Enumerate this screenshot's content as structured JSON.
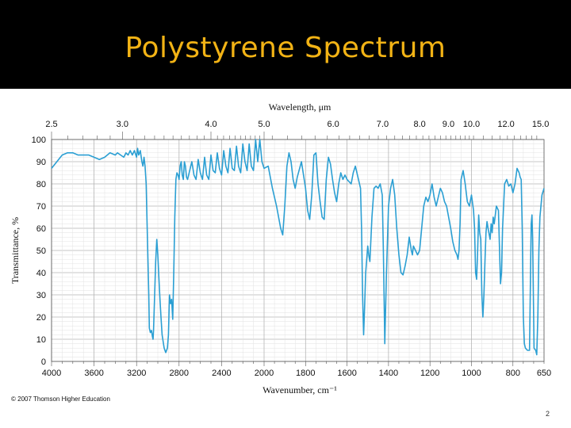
{
  "slide": {
    "title": "Polystyrene Spectrum",
    "copyright": "© 2007 Thomson Higher Education",
    "page_number": "2",
    "title_color": "#f2b315",
    "banner_color": "#000000"
  },
  "chart_data": {
    "type": "line",
    "title": "Polystyrene Spectrum",
    "xlabel": "Wavenumber, cm⁻¹",
    "ylabel": "Transmittance, %",
    "top_axis_label": "Wavelength, μm",
    "xlim": [
      4000,
      650
    ],
    "ylim": [
      0,
      100
    ],
    "x_tick_labels": [
      "4000",
      "3600",
      "3200",
      "2800",
      "2400",
      "2000",
      "1800",
      "1600",
      "1400",
      "1200",
      "1000",
      "800",
      "650"
    ],
    "y_tick_labels": [
      "0",
      "10",
      "20",
      "30",
      "40",
      "50",
      "60",
      "70",
      "80",
      "90",
      "100"
    ],
    "top_tick_labels": [
      "2.5",
      "3.0",
      "4.0",
      "5.0",
      "6.0",
      "7.0",
      "8.0",
      "9.0",
      "10.0",
      "12.0",
      "15.0"
    ],
    "line_color": "#2b9fd3",
    "grid": true,
    "series": [
      {
        "name": "Polystyrene",
        "points": [
          [
            4000,
            87
          ],
          [
            3950,
            90
          ],
          [
            3900,
            93
          ],
          [
            3850,
            94
          ],
          [
            3800,
            94
          ],
          [
            3750,
            93
          ],
          [
            3700,
            93
          ],
          [
            3650,
            93
          ],
          [
            3600,
            92
          ],
          [
            3550,
            91
          ],
          [
            3500,
            92
          ],
          [
            3450,
            94
          ],
          [
            3400,
            93
          ],
          [
            3380,
            94
          ],
          [
            3350,
            93
          ],
          [
            3320,
            92
          ],
          [
            3300,
            94
          ],
          [
            3280,
            93
          ],
          [
            3260,
            95
          ],
          [
            3240,
            93
          ],
          [
            3220,
            95
          ],
          [
            3200,
            92
          ],
          [
            3190,
            96
          ],
          [
            3180,
            93
          ],
          [
            3165,
            95
          ],
          [
            3150,
            90
          ],
          [
            3140,
            88
          ],
          [
            3130,
            92
          ],
          [
            3120,
            88
          ],
          [
            3110,
            80
          ],
          [
            3100,
            60
          ],
          [
            3085,
            30
          ],
          [
            3080,
            15
          ],
          [
            3070,
            13
          ],
          [
            3060,
            14
          ],
          [
            3050,
            11
          ],
          [
            3045,
            10
          ],
          [
            3040,
            14
          ],
          [
            3030,
            30
          ],
          [
            3020,
            45
          ],
          [
            3010,
            55
          ],
          [
            3000,
            48
          ],
          [
            2990,
            38
          ],
          [
            2980,
            28
          ],
          [
            2970,
            20
          ],
          [
            2960,
            12
          ],
          [
            2940,
            6
          ],
          [
            2925,
            4
          ],
          [
            2910,
            6
          ],
          [
            2900,
            12
          ],
          [
            2890,
            30
          ],
          [
            2880,
            26
          ],
          [
            2870,
            28
          ],
          [
            2860,
            19
          ],
          [
            2850,
            40
          ],
          [
            2840,
            65
          ],
          [
            2830,
            82
          ],
          [
            2820,
            85
          ],
          [
            2810,
            84
          ],
          [
            2800,
            82
          ],
          [
            2790,
            88
          ],
          [
            2780,
            90
          ],
          [
            2770,
            84
          ],
          [
            2760,
            82
          ],
          [
            2750,
            90
          ],
          [
            2740,
            88
          ],
          [
            2730,
            83
          ],
          [
            2720,
            82
          ],
          [
            2700,
            86
          ],
          [
            2680,
            90
          ],
          [
            2660,
            84
          ],
          [
            2640,
            82
          ],
          [
            2620,
            91
          ],
          [
            2600,
            85
          ],
          [
            2580,
            82
          ],
          [
            2560,
            92
          ],
          [
            2540,
            84
          ],
          [
            2520,
            82
          ],
          [
            2500,
            93
          ],
          [
            2480,
            86
          ],
          [
            2460,
            85
          ],
          [
            2440,
            94
          ],
          [
            2420,
            87
          ],
          [
            2400,
            84
          ],
          [
            2380,
            95
          ],
          [
            2360,
            88
          ],
          [
            2340,
            85
          ],
          [
            2320,
            96
          ],
          [
            2300,
            87
          ],
          [
            2280,
            86
          ],
          [
            2260,
            97
          ],
          [
            2240,
            88
          ],
          [
            2220,
            85
          ],
          [
            2200,
            98
          ],
          [
            2180,
            90
          ],
          [
            2160,
            86
          ],
          [
            2140,
            98
          ],
          [
            2120,
            88
          ],
          [
            2100,
            86
          ],
          [
            2080,
            100
          ],
          [
            2060,
            90
          ],
          [
            2040,
            100
          ],
          [
            2020,
            90
          ],
          [
            2000,
            87
          ],
          [
            1980,
            88
          ],
          [
            1960,
            78
          ],
          [
            1940,
            70
          ],
          [
            1920,
            60
          ],
          [
            1910,
            57
          ],
          [
            1900,
            70
          ],
          [
            1890,
            88
          ],
          [
            1880,
            94
          ],
          [
            1870,
            90
          ],
          [
            1860,
            82
          ],
          [
            1850,
            78
          ],
          [
            1840,
            83
          ],
          [
            1820,
            90
          ],
          [
            1800,
            78
          ],
          [
            1790,
            68
          ],
          [
            1780,
            64
          ],
          [
            1770,
            75
          ],
          [
            1760,
            93
          ],
          [
            1750,
            94
          ],
          [
            1740,
            80
          ],
          [
            1730,
            72
          ],
          [
            1720,
            65
          ],
          [
            1710,
            64
          ],
          [
            1700,
            82
          ],
          [
            1690,
            92
          ],
          [
            1680,
            89
          ],
          [
            1670,
            82
          ],
          [
            1660,
            76
          ],
          [
            1650,
            72
          ],
          [
            1640,
            80
          ],
          [
            1630,
            85
          ],
          [
            1620,
            82
          ],
          [
            1610,
            84
          ],
          [
            1600,
            82
          ],
          [
            1580,
            80
          ],
          [
            1570,
            85
          ],
          [
            1560,
            88
          ],
          [
            1545,
            82
          ],
          [
            1535,
            78
          ],
          [
            1530,
            60
          ],
          [
            1525,
            30
          ],
          [
            1520,
            12
          ],
          [
            1515,
            25
          ],
          [
            1510,
            40
          ],
          [
            1500,
            52
          ],
          [
            1495,
            48
          ],
          [
            1490,
            45
          ],
          [
            1480,
            65
          ],
          [
            1470,
            78
          ],
          [
            1460,
            79
          ],
          [
            1450,
            78
          ],
          [
            1440,
            80
          ],
          [
            1430,
            75
          ],
          [
            1425,
            50
          ],
          [
            1420,
            20
          ],
          [
            1418,
            8
          ],
          [
            1410,
            40
          ],
          [
            1400,
            70
          ],
          [
            1390,
            78
          ],
          [
            1380,
            82
          ],
          [
            1370,
            75
          ],
          [
            1360,
            60
          ],
          [
            1350,
            48
          ],
          [
            1340,
            40
          ],
          [
            1330,
            39
          ],
          [
            1320,
            43
          ],
          [
            1310,
            48
          ],
          [
            1300,
            56
          ],
          [
            1290,
            50
          ],
          [
            1285,
            48
          ],
          [
            1280,
            52
          ],
          [
            1270,
            50
          ],
          [
            1260,
            48
          ],
          [
            1250,
            50
          ],
          [
            1240,
            60
          ],
          [
            1230,
            70
          ],
          [
            1220,
            74
          ],
          [
            1210,
            72
          ],
          [
            1200,
            75
          ],
          [
            1190,
            80
          ],
          [
            1180,
            74
          ],
          [
            1170,
            70
          ],
          [
            1160,
            74
          ],
          [
            1150,
            78
          ],
          [
            1140,
            76
          ],
          [
            1130,
            72
          ],
          [
            1120,
            70
          ],
          [
            1110,
            65
          ],
          [
            1100,
            60
          ],
          [
            1090,
            54
          ],
          [
            1080,
            50
          ],
          [
            1070,
            48
          ],
          [
            1065,
            46
          ],
          [
            1060,
            50
          ],
          [
            1055,
            62
          ],
          [
            1050,
            82
          ],
          [
            1040,
            86
          ],
          [
            1030,
            80
          ],
          [
            1025,
            76
          ],
          [
            1020,
            72
          ],
          [
            1010,
            70
          ],
          [
            1000,
            75
          ],
          [
            990,
            68
          ],
          [
            985,
            60
          ],
          [
            980,
            40
          ],
          [
            975,
            37
          ],
          [
            970,
            50
          ],
          [
            965,
            66
          ],
          [
            960,
            58
          ],
          [
            955,
            55
          ],
          [
            950,
            30
          ],
          [
            945,
            20
          ],
          [
            940,
            30
          ],
          [
            935,
            45
          ],
          [
            930,
            58
          ],
          [
            925,
            63
          ],
          [
            920,
            60
          ],
          [
            910,
            55
          ],
          [
            905,
            62
          ],
          [
            900,
            58
          ],
          [
            895,
            65
          ],
          [
            890,
            62
          ],
          [
            880,
            70
          ],
          [
            870,
            68
          ],
          [
            860,
            35
          ],
          [
            855,
            40
          ],
          [
            850,
            60
          ],
          [
            840,
            80
          ],
          [
            830,
            82
          ],
          [
            820,
            79
          ],
          [
            810,
            80
          ],
          [
            800,
            76
          ],
          [
            790,
            80
          ],
          [
            780,
            87
          ],
          [
            770,
            85
          ],
          [
            765,
            83
          ],
          [
            760,
            82
          ],
          [
            755,
            60
          ],
          [
            750,
            20
          ],
          [
            745,
            8
          ],
          [
            740,
            6
          ],
          [
            730,
            5
          ],
          [
            720,
            5
          ],
          [
            712,
            62
          ],
          [
            708,
            66
          ],
          [
            705,
            55
          ],
          [
            700,
            20
          ],
          [
            698,
            6
          ],
          [
            690,
            5
          ],
          [
            685,
            3
          ],
          [
            680,
            20
          ],
          [
            675,
            50
          ],
          [
            670,
            65
          ],
          [
            660,
            75
          ],
          [
            650,
            78
          ]
        ]
      }
    ]
  }
}
